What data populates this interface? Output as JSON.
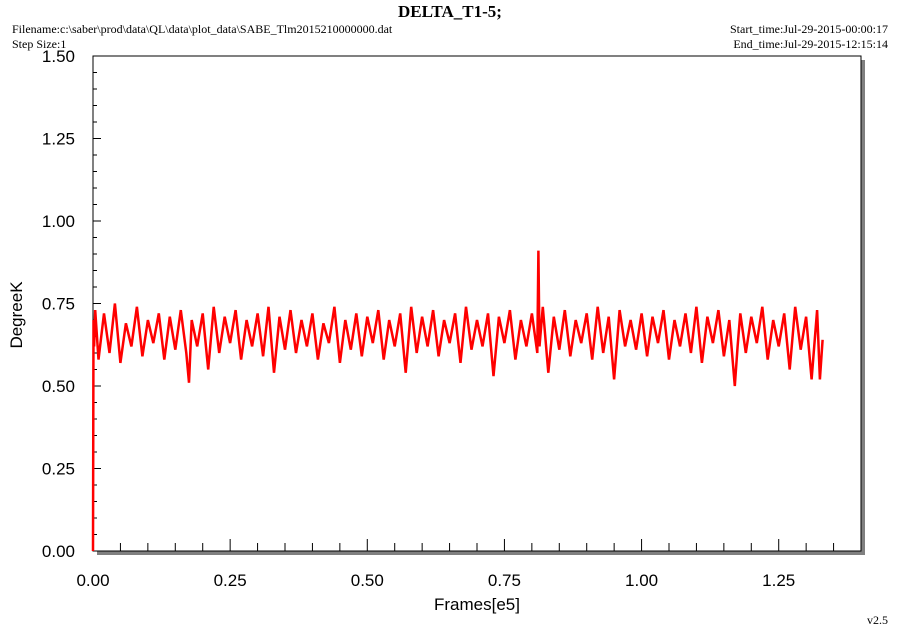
{
  "header": {
    "title": "DELTA_T1-5;",
    "filename": "Filename:c:\\saber\\prod\\data\\QL\\data\\plot_data\\SABE_Tlm2015210000000.dat",
    "step_size": "Step Size:1",
    "start_time": "Start_time:Jul-29-2015-00:00:17",
    "end_time": "End_time:Jul-29-2015-12:15:14"
  },
  "footer": {
    "version": "v2.5"
  },
  "colors": {
    "series": "#ff0000",
    "frame": "#000000",
    "background": "#ffffff"
  },
  "chart_data": {
    "type": "line",
    "title": "DELTA_T1-5;",
    "xlabel": "Frames[e5]",
    "ylabel": "DegreeK",
    "xlim": [
      0,
      1.4
    ],
    "ylim": [
      0,
      1.5
    ],
    "x_ticks": [
      "0.00",
      "0.25",
      "0.50",
      "0.75",
      "1.00",
      "1.25"
    ],
    "y_ticks": [
      "0.00",
      "0.25",
      "0.50",
      "0.75",
      "1.00",
      "1.25",
      "1.50"
    ],
    "grid": false,
    "legend": "none",
    "series": [
      {
        "x": [
          0.0,
          0.001,
          0.002,
          0.004,
          0.01,
          0.02,
          0.03,
          0.04,
          0.05,
          0.06,
          0.07,
          0.08,
          0.09,
          0.1,
          0.11,
          0.12,
          0.13,
          0.14,
          0.15,
          0.16,
          0.17,
          0.175,
          0.18,
          0.19,
          0.2,
          0.21,
          0.22,
          0.23,
          0.24,
          0.25,
          0.26,
          0.27,
          0.28,
          0.29,
          0.3,
          0.31,
          0.32,
          0.33,
          0.34,
          0.35,
          0.36,
          0.37,
          0.38,
          0.39,
          0.4,
          0.41,
          0.42,
          0.43,
          0.44,
          0.45,
          0.46,
          0.47,
          0.48,
          0.49,
          0.5,
          0.51,
          0.52,
          0.53,
          0.54,
          0.55,
          0.56,
          0.57,
          0.58,
          0.59,
          0.6,
          0.61,
          0.62,
          0.63,
          0.64,
          0.65,
          0.66,
          0.67,
          0.68,
          0.69,
          0.7,
          0.71,
          0.72,
          0.73,
          0.74,
          0.75,
          0.76,
          0.77,
          0.78,
          0.79,
          0.8,
          0.81,
          0.812,
          0.814,
          0.82,
          0.83,
          0.84,
          0.85,
          0.86,
          0.87,
          0.88,
          0.89,
          0.9,
          0.91,
          0.92,
          0.93,
          0.94,
          0.95,
          0.96,
          0.97,
          0.98,
          0.99,
          1.0,
          1.01,
          1.02,
          1.03,
          1.04,
          1.05,
          1.06,
          1.07,
          1.08,
          1.09,
          1.1,
          1.11,
          1.12,
          1.13,
          1.14,
          1.15,
          1.16,
          1.17,
          1.175,
          1.18,
          1.19,
          1.2,
          1.21,
          1.22,
          1.23,
          1.24,
          1.25,
          1.26,
          1.27,
          1.28,
          1.29,
          1.3,
          1.31,
          1.32,
          1.325,
          1.33
        ],
        "y": [
          0.0,
          0.7,
          0.62,
          0.73,
          0.58,
          0.72,
          0.6,
          0.75,
          0.57,
          0.69,
          0.62,
          0.74,
          0.59,
          0.7,
          0.63,
          0.72,
          0.58,
          0.71,
          0.61,
          0.73,
          0.6,
          0.51,
          0.7,
          0.62,
          0.72,
          0.55,
          0.74,
          0.6,
          0.71,
          0.63,
          0.73,
          0.58,
          0.7,
          0.62,
          0.72,
          0.59,
          0.74,
          0.54,
          0.71,
          0.61,
          0.73,
          0.6,
          0.7,
          0.62,
          0.72,
          0.58,
          0.69,
          0.63,
          0.74,
          0.57,
          0.7,
          0.61,
          0.72,
          0.59,
          0.71,
          0.63,
          0.73,
          0.58,
          0.7,
          0.62,
          0.72,
          0.54,
          0.74,
          0.6,
          0.71,
          0.62,
          0.73,
          0.59,
          0.7,
          0.63,
          0.72,
          0.57,
          0.74,
          0.61,
          0.7,
          0.62,
          0.72,
          0.53,
          0.71,
          0.63,
          0.73,
          0.58,
          0.7,
          0.62,
          0.72,
          0.6,
          0.91,
          0.62,
          0.74,
          0.54,
          0.71,
          0.61,
          0.73,
          0.59,
          0.7,
          0.63,
          0.72,
          0.58,
          0.74,
          0.6,
          0.71,
          0.52,
          0.73,
          0.62,
          0.7,
          0.61,
          0.72,
          0.59,
          0.71,
          0.63,
          0.73,
          0.58,
          0.7,
          0.62,
          0.72,
          0.6,
          0.74,
          0.57,
          0.71,
          0.63,
          0.73,
          0.59,
          0.7,
          0.5,
          0.62,
          0.72,
          0.6,
          0.71,
          0.63,
          0.74,
          0.58,
          0.7,
          0.62,
          0.72,
          0.55,
          0.74,
          0.61,
          0.71,
          0.52,
          0.73,
          0.52,
          0.64
        ]
      }
    ]
  }
}
